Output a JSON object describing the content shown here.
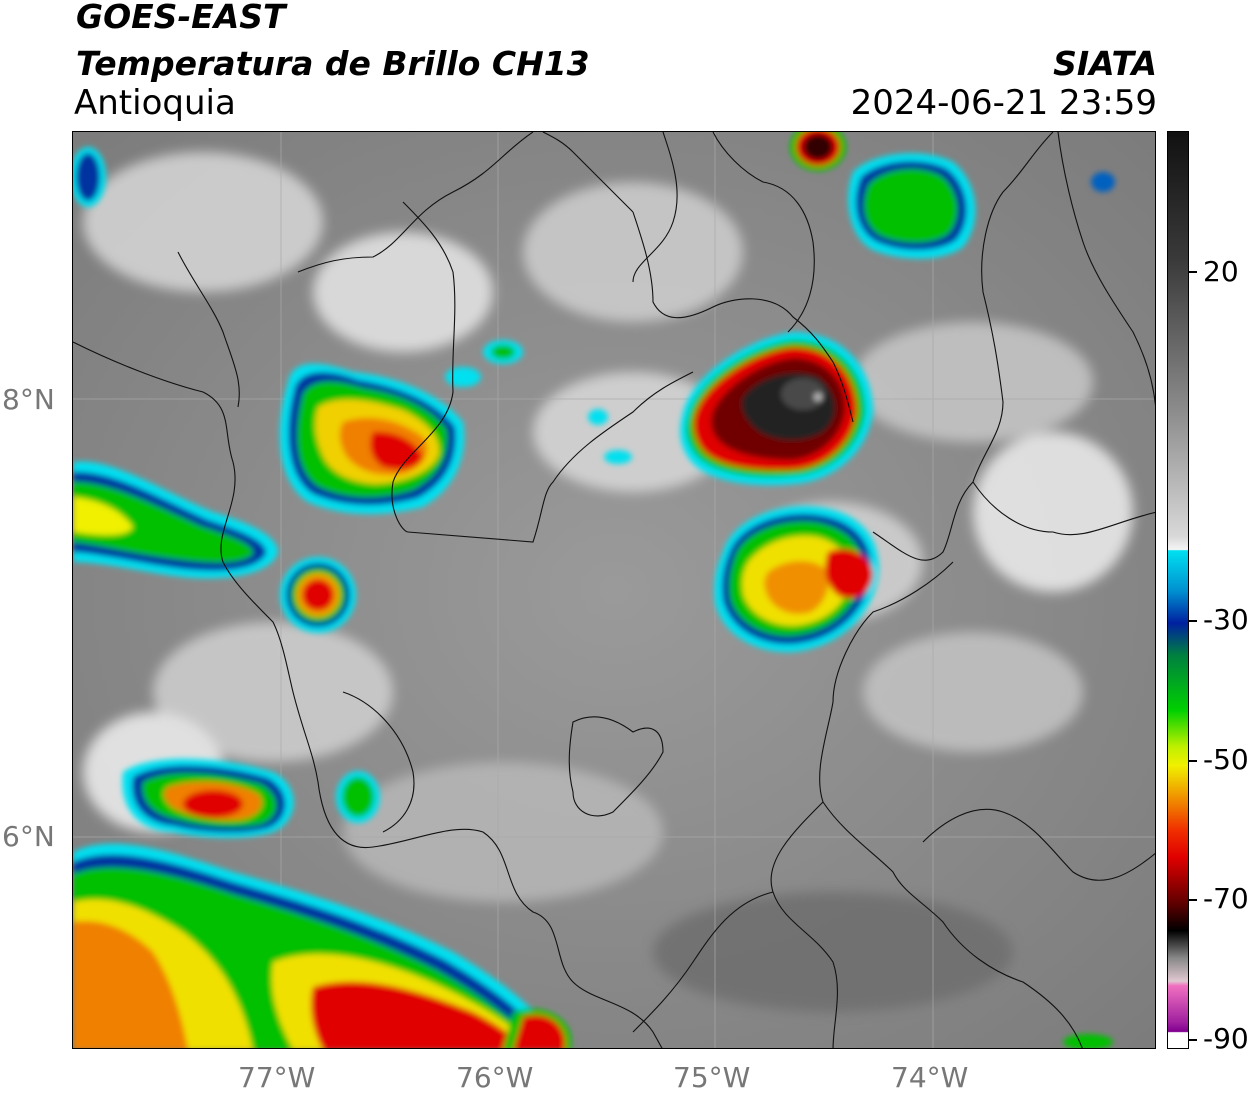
{
  "header": {
    "satellite": "GOES-EAST",
    "product": "Temperatura de Brillo CH13",
    "region": "Antioquia",
    "organization": "SIATA",
    "datetime": "2024-06-21 23:59"
  },
  "map": {
    "lon_range": [
      -77.9,
      -72.9
    ],
    "lat_range": [
      5.05,
      9.25
    ],
    "lon_ticks": [
      "77°W",
      "76°W",
      "75°W",
      "74°W"
    ],
    "lat_ticks": [
      "8°N",
      "6°N"
    ],
    "gridlines": true,
    "features": [
      "country-borders",
      "department-borders",
      "coastline"
    ],
    "cold-cloud-cells": [
      {
        "name": "north-central-cell",
        "min_temp_c": -85
      },
      {
        "name": "west-urabá-cell",
        "min_temp_c": -65
      },
      {
        "name": "east-cell",
        "min_temp_c": -65
      },
      {
        "name": "southwest-chocó-cells",
        "min_temp_c": -65
      }
    ]
  },
  "colorbar": {
    "ticks": [
      "20",
      "-30",
      "-50",
      "-70",
      "-90"
    ],
    "range_c": [
      -90,
      40
    ],
    "colors": {
      "warm-gray-dark": "#555555",
      "warm-gray-light": "#f0f0f0",
      "cyan": "#00e0f0",
      "blue": "#0030a0",
      "green": "#00c000",
      "yellow": "#f0f000",
      "orange": "#f08000",
      "red": "#e00000",
      "dark-red": "#500000",
      "black": "#000000",
      "magenta": "#d040c0",
      "purple": "#8000a0"
    }
  }
}
